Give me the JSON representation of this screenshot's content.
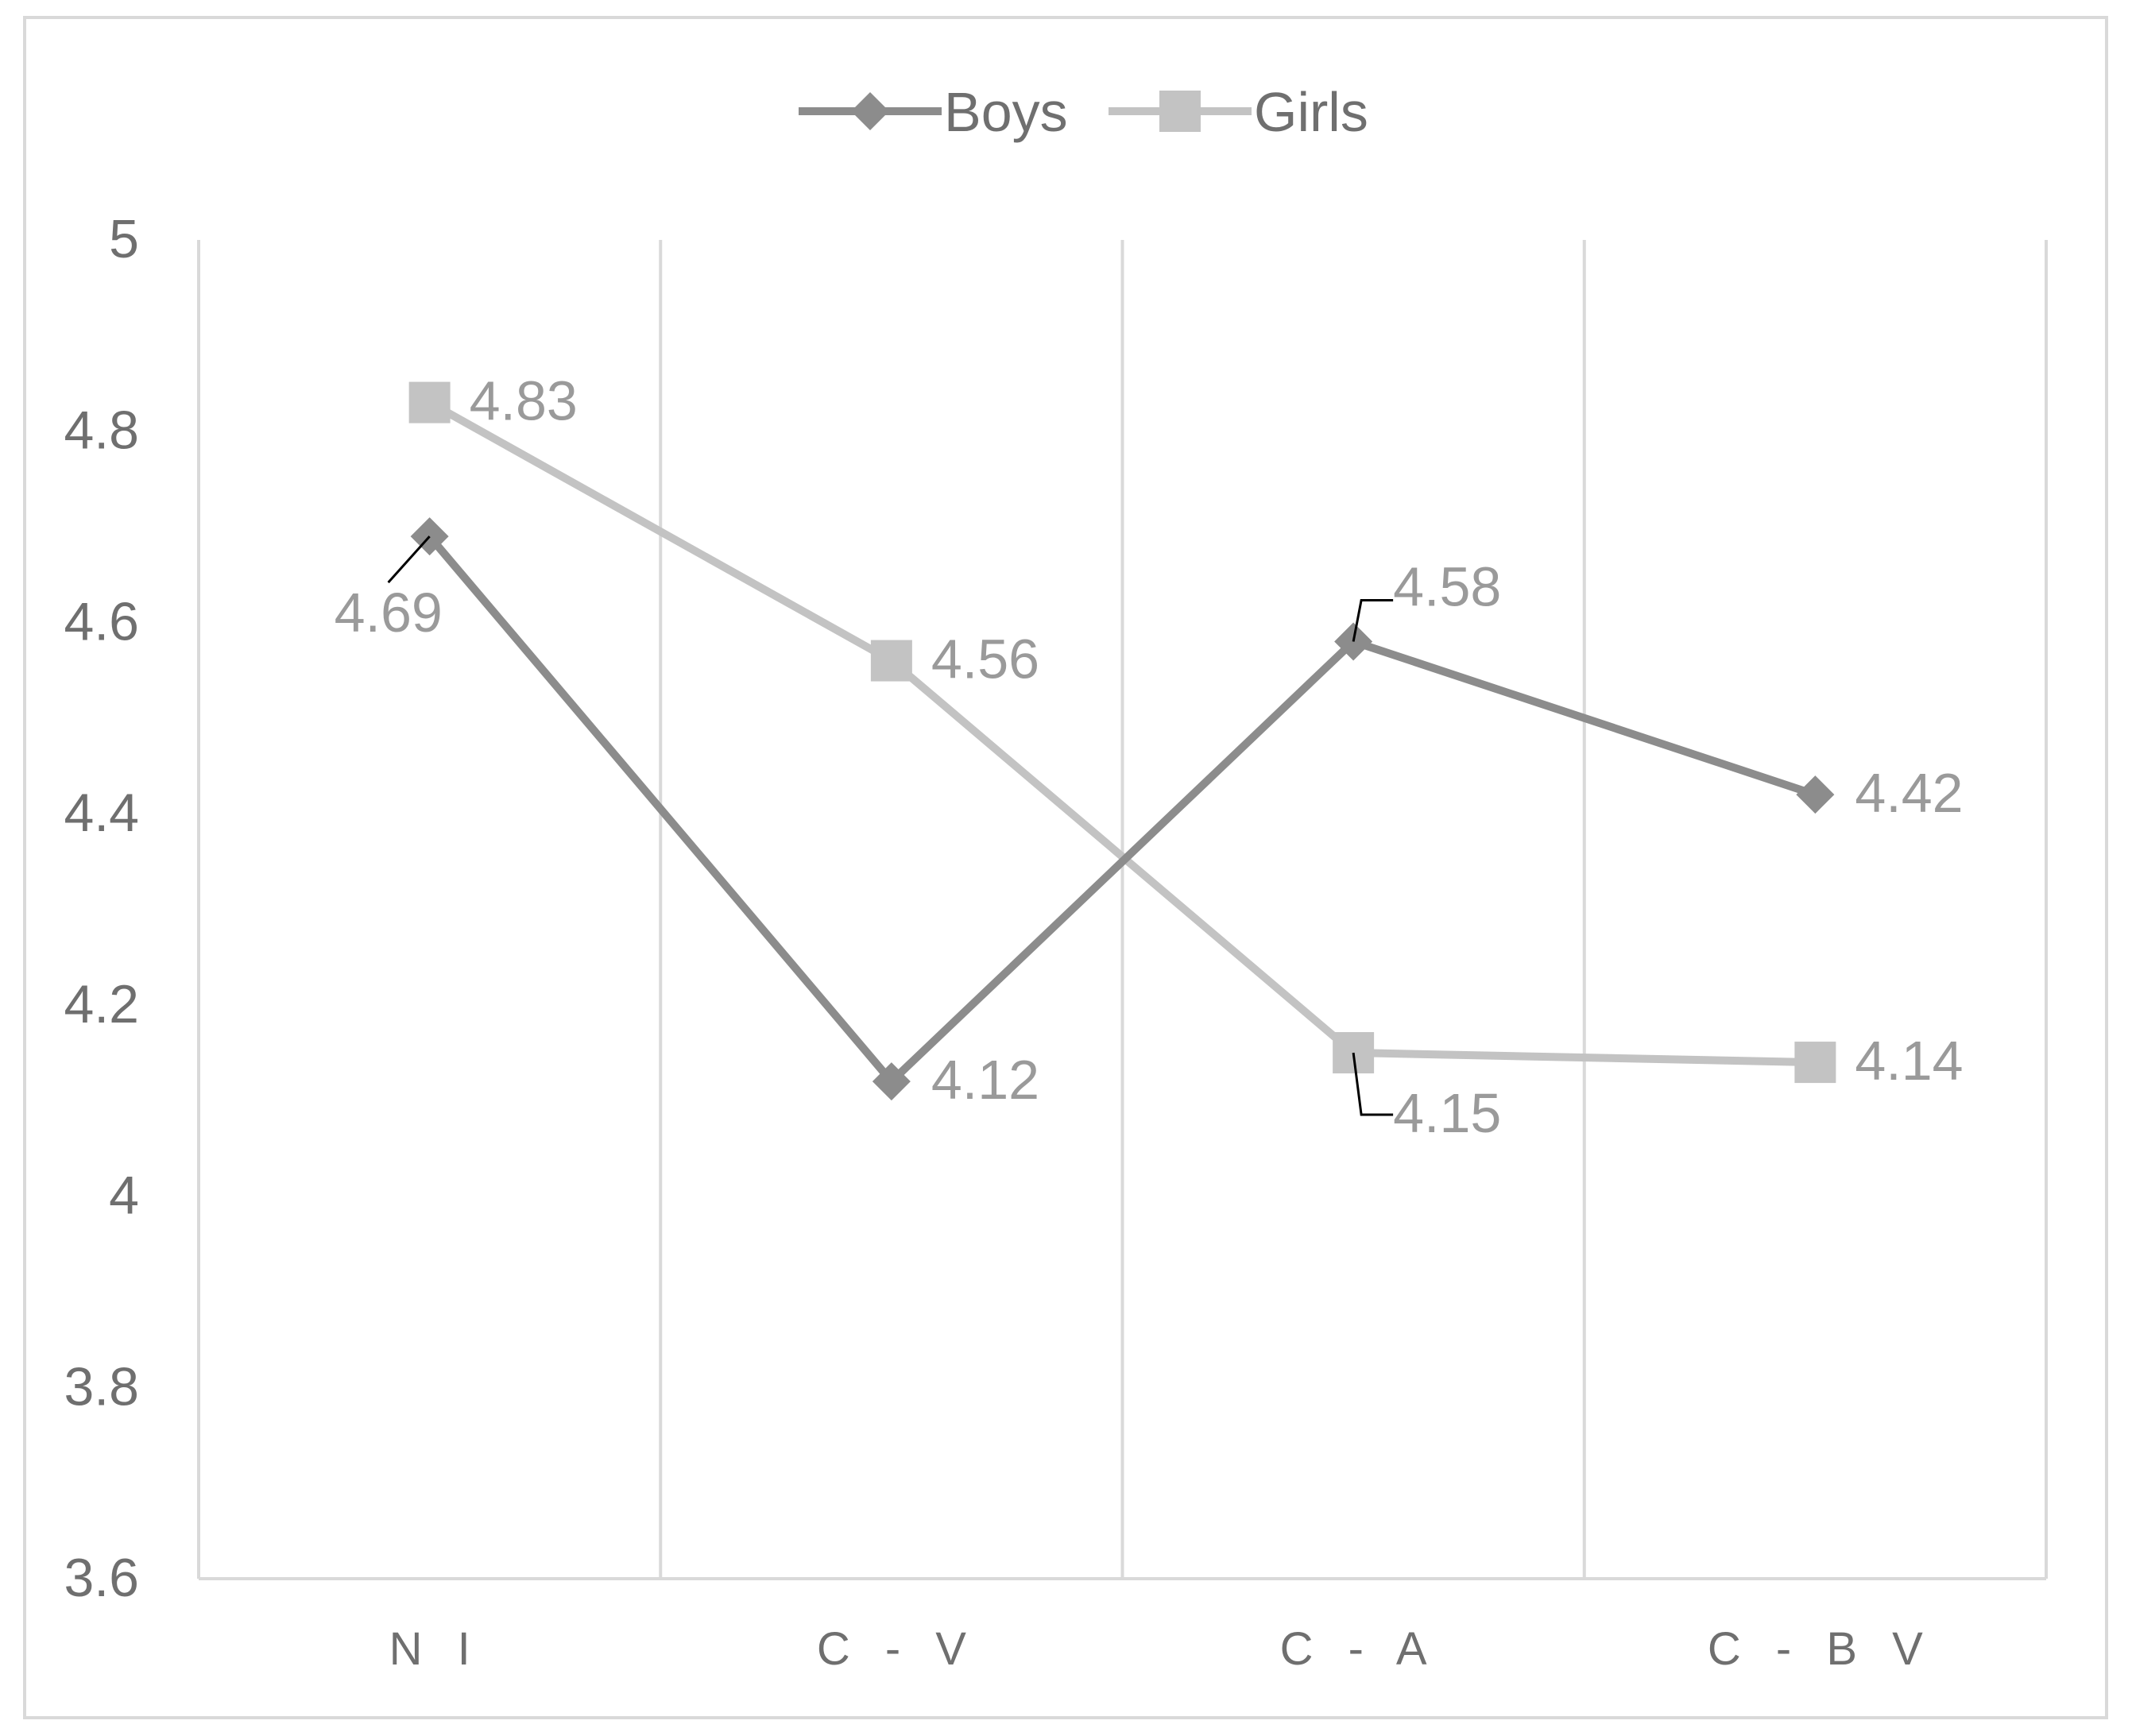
{
  "chart_data": {
    "type": "line",
    "categories": [
      "N I",
      "C - V",
      "C - A",
      "C - B V"
    ],
    "series": [
      {
        "name": "Boys",
        "values": [
          4.69,
          4.12,
          4.58,
          4.42
        ],
        "labels": [
          "4.69",
          "4.12",
          "4.58",
          "4.42"
        ],
        "color": "#8c8c8c",
        "marker": "diamond"
      },
      {
        "name": "Girls",
        "values": [
          4.83,
          4.56,
          4.15,
          4.14
        ],
        "labels": [
          "4.83",
          "4.56",
          "4.15",
          "4.14"
        ],
        "color": "#c3c3c3",
        "marker": "square"
      }
    ],
    "ylim": [
      3.6,
      5
    ],
    "yticks": [
      "3.6",
      "3.8",
      "4",
      "4.2",
      "4.4",
      "4.6",
      "4.8",
      "5"
    ],
    "grid": "vertical",
    "legend": "top-center",
    "title": "",
    "xlabel": "",
    "ylabel": ""
  }
}
